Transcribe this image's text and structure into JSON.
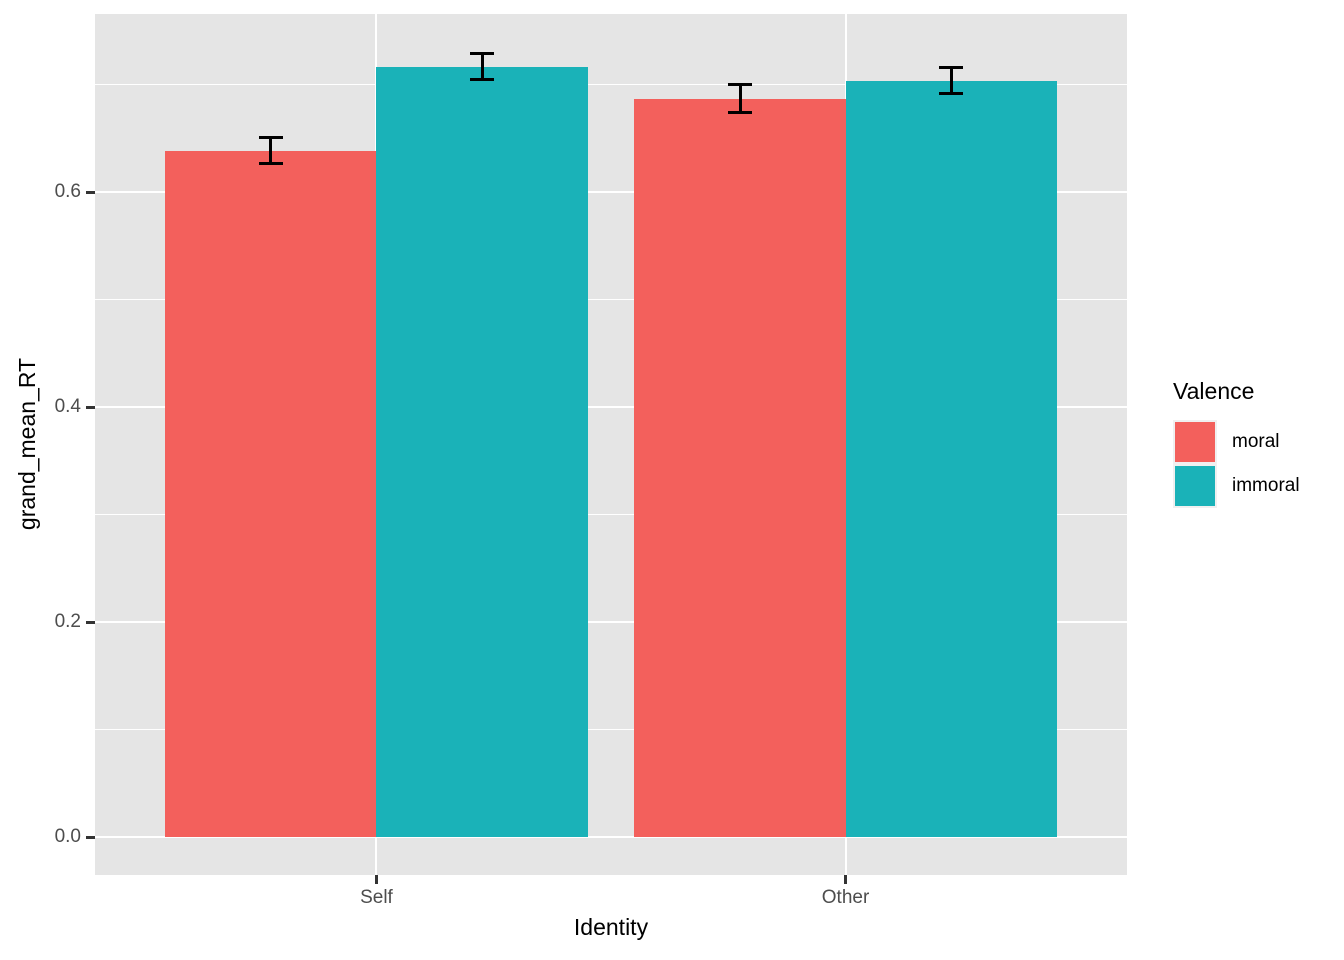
{
  "chart_data": {
    "type": "bar",
    "title": "",
    "xlabel": "Identity",
    "ylabel": "grand_mean_RT",
    "categories": [
      "Self",
      "Other"
    ],
    "series": [
      {
        "name": "moral",
        "color": "#F3605C",
        "values": [
          0.639,
          0.687
        ],
        "errors": [
          0.012,
          0.013
        ]
      },
      {
        "name": "immoral",
        "color": "#1AB2B8",
        "values": [
          0.717,
          0.704
        ],
        "errors": [
          0.012,
          0.012
        ]
      }
    ],
    "y_ticks": [
      0.0,
      0.2,
      0.4,
      0.6
    ],
    "y_tick_labels": [
      "0.0",
      "0.2",
      "0.4",
      "0.6"
    ],
    "y_minor_ticks": [
      0.1,
      0.3,
      0.5,
      0.7
    ],
    "ylim": [
      -0.035,
      0.766
    ],
    "grid": true,
    "legend": {
      "title": "Valence",
      "position": "right",
      "entries": [
        {
          "label": "moral",
          "color": "#F3605C"
        },
        {
          "label": "immoral",
          "color": "#1AB2B8"
        }
      ]
    },
    "colors": {
      "panel_background": "#E5E5E5",
      "gridline": "#FFFFFF",
      "errorbar": "#000000",
      "tick_mark": "#333333",
      "tick_label": "#4D4D4D",
      "axis_title": "#000000"
    }
  }
}
